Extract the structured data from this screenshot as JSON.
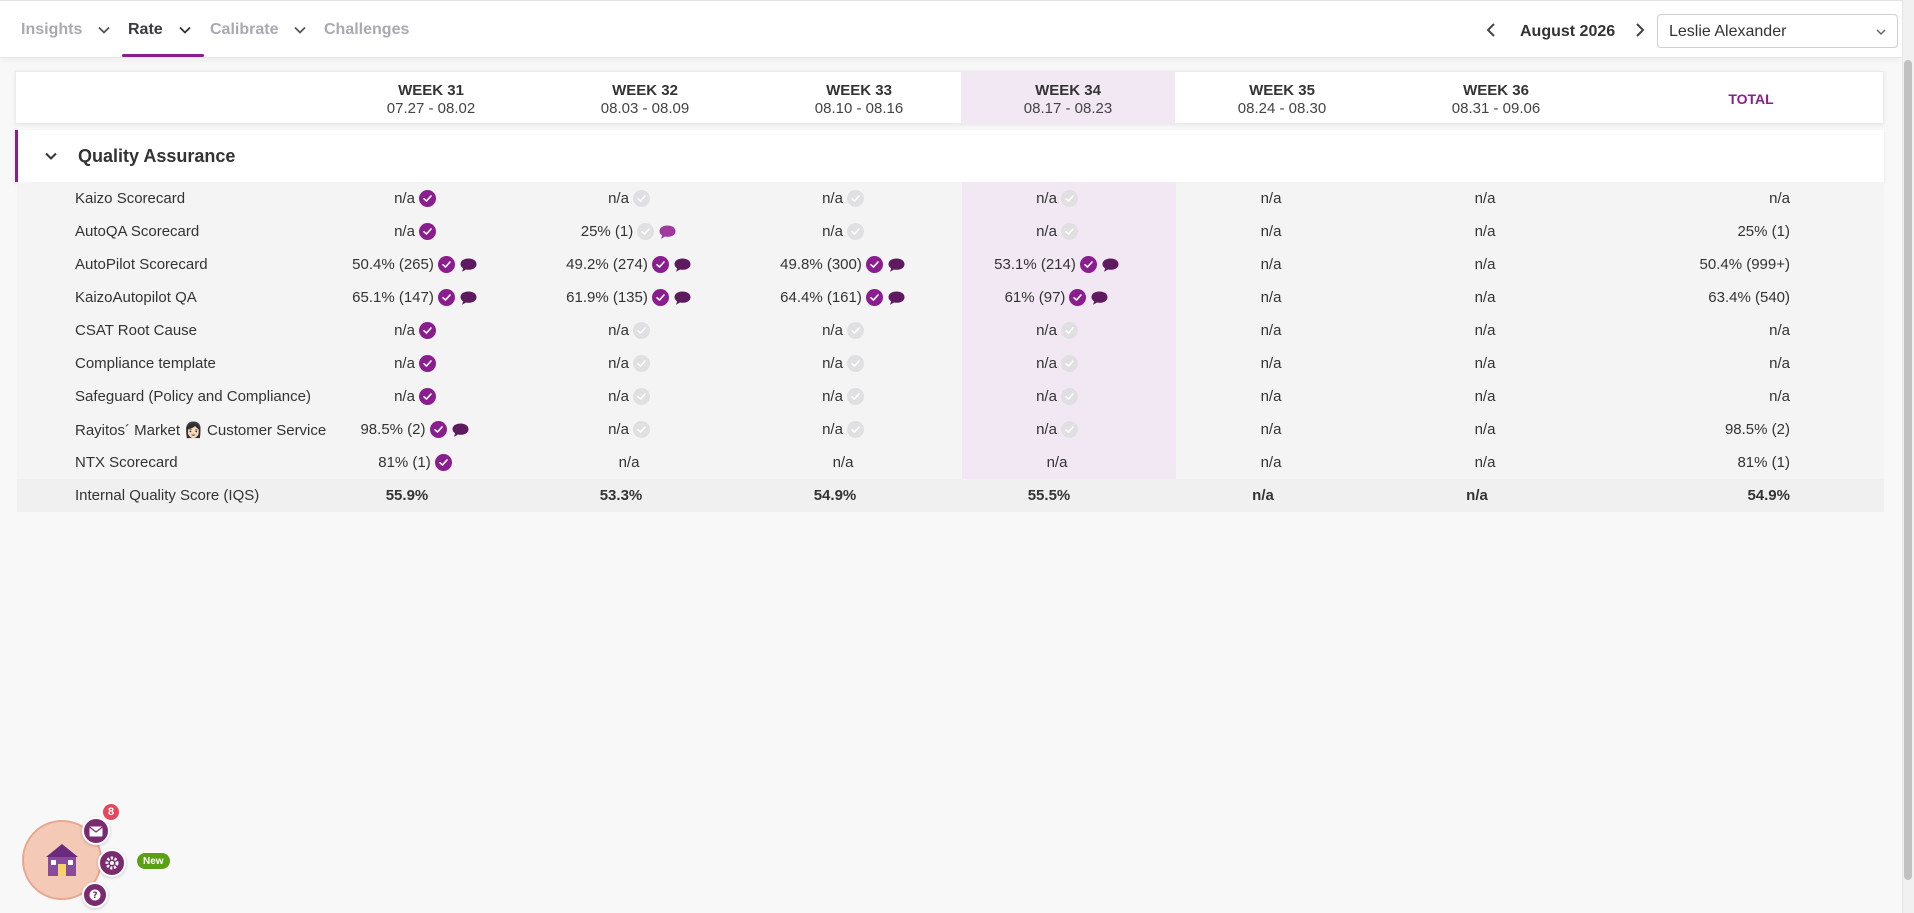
{
  "nav": {
    "tabs": [
      {
        "label": "Insights",
        "has_dropdown": true,
        "active": false
      },
      {
        "label": "Rate",
        "has_dropdown": true,
        "active": true
      },
      {
        "label": "Calibrate",
        "has_dropdown": true,
        "active": false
      },
      {
        "label": "Challenges",
        "has_dropdown": false,
        "active": false
      }
    ],
    "month": "August 2026",
    "user": "Leslie Alexander"
  },
  "colors": {
    "accent": "#8a1e8e",
    "highlight_bg": "#f2e8f4",
    "badge_red": "#e8475a",
    "badge_green": "#5aa015"
  },
  "weeks": [
    {
      "name": "WEEK 31",
      "range": "07.27 - 08.02"
    },
    {
      "name": "WEEK 32",
      "range": "08.03 - 08.09"
    },
    {
      "name": "WEEK 33",
      "range": "08.10 - 08.16"
    },
    {
      "name": "WEEK 34",
      "range": "08.17 - 08.23"
    },
    {
      "name": "WEEK 35",
      "range": "08.24 - 08.30"
    },
    {
      "name": "WEEK 36",
      "range": "08.31 - 09.06"
    }
  ],
  "highlighted_week_index": 3,
  "total_label": "TOTAL",
  "section": {
    "title": "Quality Assurance"
  },
  "rows": [
    {
      "label": "Kaizo Scorecard",
      "total": "n/a",
      "cells": [
        {
          "value": "n/a",
          "check": "done",
          "comment": false
        },
        {
          "value": "n/a",
          "check": "pending",
          "comment": false
        },
        {
          "value": "n/a",
          "check": "pending",
          "comment": false
        },
        {
          "value": "n/a",
          "check": "pending",
          "comment": false
        },
        {
          "value": "n/a",
          "check": "none",
          "comment": false
        },
        {
          "value": "n/a",
          "check": "none",
          "comment": false
        }
      ]
    },
    {
      "label": "AutoQA Scorecard",
      "total": "25% (1)",
      "cells": [
        {
          "value": "n/a",
          "check": "done",
          "comment": false
        },
        {
          "value": "25% (1)",
          "check": "pending",
          "comment": "light"
        },
        {
          "value": "n/a",
          "check": "pending",
          "comment": false
        },
        {
          "value": "n/a",
          "check": "pending",
          "comment": false
        },
        {
          "value": "n/a",
          "check": "none",
          "comment": false
        },
        {
          "value": "n/a",
          "check": "none",
          "comment": false
        }
      ]
    },
    {
      "label": "AutoPilot Scorecard",
      "total": "50.4% (999+)",
      "cells": [
        {
          "value": "50.4% (265)",
          "check": "done",
          "comment": "dark"
        },
        {
          "value": "49.2% (274)",
          "check": "done",
          "comment": "dark"
        },
        {
          "value": "49.8% (300)",
          "check": "done",
          "comment": "dark"
        },
        {
          "value": "53.1% (214)",
          "check": "done",
          "comment": "dark"
        },
        {
          "value": "n/a",
          "check": "none",
          "comment": false
        },
        {
          "value": "n/a",
          "check": "none",
          "comment": false
        }
      ]
    },
    {
      "label": "KaizoAutopilot QA",
      "total": "63.4% (540)",
      "cells": [
        {
          "value": "65.1% (147)",
          "check": "done",
          "comment": "dark"
        },
        {
          "value": "61.9% (135)",
          "check": "done",
          "comment": "dark"
        },
        {
          "value": "64.4% (161)",
          "check": "done",
          "comment": "dark"
        },
        {
          "value": "61% (97)",
          "check": "done",
          "comment": "dark"
        },
        {
          "value": "n/a",
          "check": "none",
          "comment": false
        },
        {
          "value": "n/a",
          "check": "none",
          "comment": false
        }
      ]
    },
    {
      "label": "CSAT Root Cause",
      "total": "n/a",
      "cells": [
        {
          "value": "n/a",
          "check": "done",
          "comment": false
        },
        {
          "value": "n/a",
          "check": "pending",
          "comment": false
        },
        {
          "value": "n/a",
          "check": "pending",
          "comment": false
        },
        {
          "value": "n/a",
          "check": "pending",
          "comment": false
        },
        {
          "value": "n/a",
          "check": "none",
          "comment": false
        },
        {
          "value": "n/a",
          "check": "none",
          "comment": false
        }
      ]
    },
    {
      "label": "Compliance template",
      "total": "n/a",
      "cells": [
        {
          "value": "n/a",
          "check": "done",
          "comment": false
        },
        {
          "value": "n/a",
          "check": "pending",
          "comment": false
        },
        {
          "value": "n/a",
          "check": "pending",
          "comment": false
        },
        {
          "value": "n/a",
          "check": "pending",
          "comment": false
        },
        {
          "value": "n/a",
          "check": "none",
          "comment": false
        },
        {
          "value": "n/a",
          "check": "none",
          "comment": false
        }
      ]
    },
    {
      "label": "Safeguard (Policy and Compliance)",
      "total": "n/a",
      "cells": [
        {
          "value": "n/a",
          "check": "done",
          "comment": false
        },
        {
          "value": "n/a",
          "check": "pending",
          "comment": false
        },
        {
          "value": "n/a",
          "check": "pending",
          "comment": false
        },
        {
          "value": "n/a",
          "check": "pending",
          "comment": false
        },
        {
          "value": "n/a",
          "check": "none",
          "comment": false
        },
        {
          "value": "n/a",
          "check": "none",
          "comment": false
        }
      ]
    },
    {
      "label": "Rayitos´ Market 👩🏻 Customer Service",
      "total": "98.5% (2)",
      "cells": [
        {
          "value": "98.5% (2)",
          "check": "done",
          "comment": "dark"
        },
        {
          "value": "n/a",
          "check": "pending",
          "comment": false
        },
        {
          "value": "n/a",
          "check": "pending",
          "comment": false
        },
        {
          "value": "n/a",
          "check": "pending",
          "comment": false
        },
        {
          "value": "n/a",
          "check": "none",
          "comment": false
        },
        {
          "value": "n/a",
          "check": "none",
          "comment": false
        }
      ]
    },
    {
      "label": "NTX Scorecard",
      "total": "81% (1)",
      "cells": [
        {
          "value": "81% (1)",
          "check": "done",
          "comment": false
        },
        {
          "value": "n/a",
          "check": "none",
          "comment": false
        },
        {
          "value": "n/a",
          "check": "none",
          "comment": false
        },
        {
          "value": "n/a",
          "check": "none",
          "comment": false
        },
        {
          "value": "n/a",
          "check": "none",
          "comment": false
        },
        {
          "value": "n/a",
          "check": "none",
          "comment": false
        }
      ]
    }
  ],
  "iqs_row": {
    "label": "Internal Quality Score (IQS)",
    "values": [
      "55.9%",
      "53.3%",
      "54.9%",
      "55.5%",
      "n/a",
      "n/a"
    ],
    "total": "54.9%"
  },
  "widget": {
    "notification_count": "8",
    "new_badge": "New"
  }
}
